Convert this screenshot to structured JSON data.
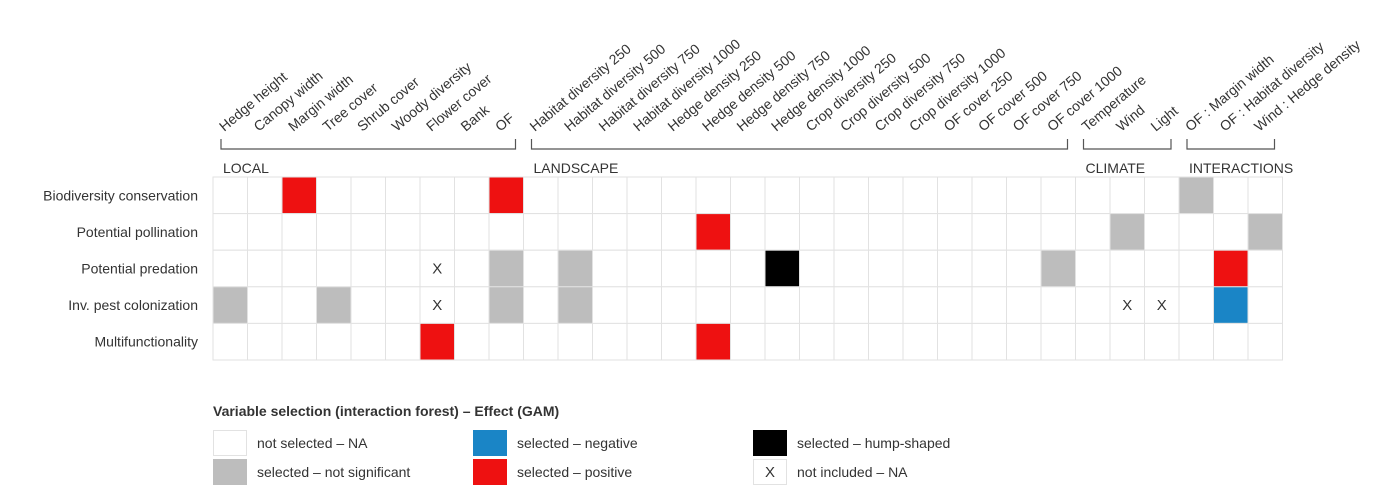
{
  "chart_data": {
    "type": "heatmap",
    "columns": [
      "Hedge height",
      "Canopy width",
      "Margin width",
      "Tree cover",
      "Shrub cover",
      "Woody diversity",
      "Flower cover",
      "Bank",
      "OF",
      "Habitat diversity 250",
      "Habitat diversity 500",
      "Habitat diversity 750",
      "Habitat diversity 1000",
      "Hedge density 250",
      "Hedge density 500",
      "Hedge density 750",
      "Hedge density 1000",
      "Crop diversity 250",
      "Crop diversity 500",
      "Crop diversity 750",
      "Crop diversity 1000",
      "OF cover 250",
      "OF cover 500",
      "OF cover 750",
      "OF cover 1000",
      "Temperature",
      "Wind",
      "Light",
      "OF : Margin width",
      "OF : Habitat diversity",
      "Wind : Hedge density"
    ],
    "groups": [
      {
        "label": "LOCAL",
        "start": 0,
        "end": 8
      },
      {
        "label": "LANDSCAPE",
        "start": 9,
        "end": 24
      },
      {
        "label": "CLIMATE",
        "start": 25,
        "end": 27
      },
      {
        "label": "INTERACTIONS",
        "start": 28,
        "end": 30
      }
    ],
    "rows": [
      "Biodiversity conservation",
      "Potential pollination",
      "Potential predation",
      "Inv. pest colonization",
      "Multifunctionality"
    ],
    "cell_codes": {
      "N": "not selected – NA",
      "S": "selected – not significant",
      "P": "selected – positive",
      "G": "selected – negative",
      "H": "selected – hump-shaped",
      "X": "not included – NA"
    },
    "cells": [
      [
        "N",
        "N",
        "P",
        "N",
        "N",
        "N",
        "N",
        "N",
        "P",
        "N",
        "N",
        "N",
        "N",
        "N",
        "N",
        "N",
        "N",
        "N",
        "N",
        "N",
        "N",
        "N",
        "N",
        "N",
        "N",
        "N",
        "N",
        "N",
        "S",
        "N",
        "N"
      ],
      [
        "N",
        "N",
        "N",
        "N",
        "N",
        "N",
        "N",
        "N",
        "N",
        "N",
        "N",
        "N",
        "N",
        "N",
        "P",
        "N",
        "N",
        "N",
        "N",
        "N",
        "N",
        "N",
        "N",
        "N",
        "N",
        "N",
        "S",
        "N",
        "N",
        "N",
        "S"
      ],
      [
        "N",
        "N",
        "N",
        "N",
        "N",
        "N",
        "X",
        "N",
        "S",
        "N",
        "S",
        "N",
        "N",
        "N",
        "N",
        "N",
        "H",
        "N",
        "N",
        "N",
        "N",
        "N",
        "N",
        "N",
        "S",
        "N",
        "N",
        "N",
        "N",
        "P",
        "N"
      ],
      [
        "S",
        "N",
        "N",
        "S",
        "N",
        "N",
        "X",
        "N",
        "S",
        "N",
        "S",
        "N",
        "N",
        "N",
        "N",
        "N",
        "N",
        "N",
        "N",
        "N",
        "N",
        "N",
        "N",
        "N",
        "N",
        "N",
        "X",
        "X",
        "N",
        "G",
        "N"
      ],
      [
        "N",
        "N",
        "N",
        "N",
        "N",
        "N",
        "P",
        "N",
        "N",
        "N",
        "N",
        "N",
        "N",
        "N",
        "P",
        "N",
        "N",
        "N",
        "N",
        "N",
        "N",
        "N",
        "N",
        "N",
        "N",
        "N",
        "N",
        "N",
        "N",
        "N",
        "N"
      ]
    ],
    "colors": {
      "N": "#ffffff",
      "S": "#bdbdbd",
      "P": "#ee1111",
      "G": "#1a85c6",
      "H": "#000000",
      "X": "#ffffff",
      "grid": "#e2e2e2"
    },
    "legend_title": "Variable selection (interaction forest) – Effect (GAM)",
    "legend": [
      {
        "code": "N",
        "label": "not selected – NA"
      },
      {
        "code": "S",
        "label": "selected – not significant"
      },
      {
        "code": "G",
        "label": "selected – negative"
      },
      {
        "code": "P",
        "label": "selected – positive"
      },
      {
        "code": "H",
        "label": "selected – hump-shaped"
      },
      {
        "code": "X",
        "label": "not included – NA",
        "mark": "X"
      }
    ],
    "x_mark": "X"
  }
}
